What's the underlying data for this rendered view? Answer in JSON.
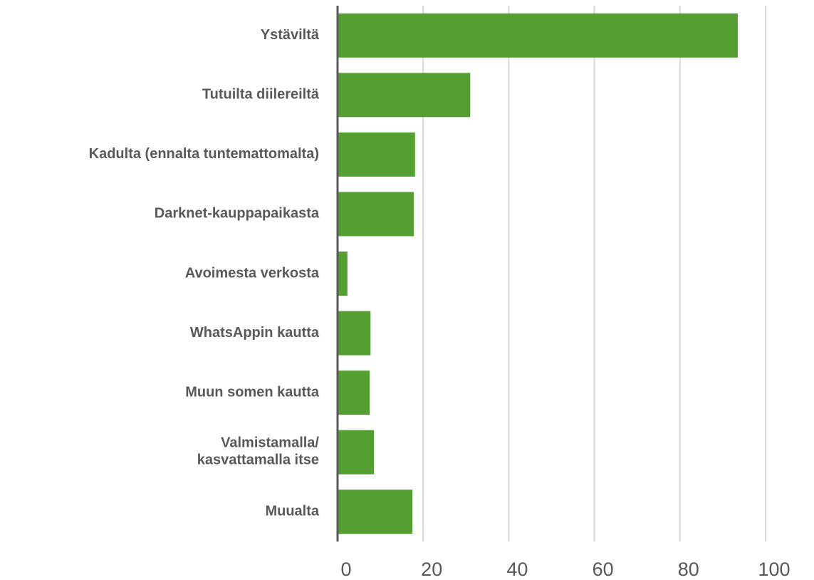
{
  "chart_data": {
    "type": "bar",
    "orientation": "horizontal",
    "categories": [
      "Ystäviltä",
      "Tutuilta diilereiltä",
      "Kadulta (ennalta tuntemattomalta)",
      "Darknet-kauppapaikasta",
      "Avoimesta verkosta",
      "WhatsAppin kautta",
      "Muun somen kautta",
      "Valmistamalla/\nkasvattamalla itse",
      "Muualta"
    ],
    "values": [
      93.5,
      31,
      18.1,
      17.8,
      2.3,
      7.7,
      7.5,
      8.5,
      17.5
    ],
    "color": "#559e31",
    "xlim": [
      0,
      100
    ],
    "xticks": [
      0,
      20,
      40,
      60,
      80,
      100
    ],
    "grid": true
  }
}
